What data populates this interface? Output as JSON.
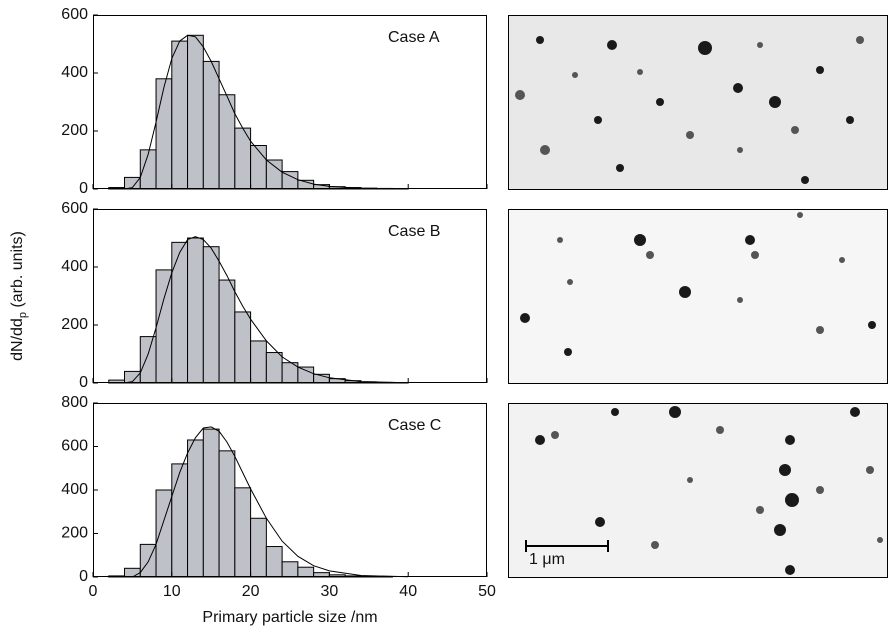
{
  "chart_data": [
    {
      "type": "histogram",
      "annotation": "Case A",
      "color": "#bfc1c8",
      "bins": [
        2,
        4,
        6,
        8,
        10,
        12,
        14,
        16,
        18,
        20,
        22,
        24,
        26,
        28,
        30,
        32,
        34,
        36,
        38,
        40
      ],
      "values": [
        5,
        40,
        135,
        380,
        510,
        530,
        440,
        325,
        210,
        150,
        100,
        60,
        30,
        15,
        8,
        5,
        3,
        2,
        1
      ],
      "fit": {
        "x": [
          4,
          5,
          6,
          7,
          8,
          9,
          10,
          11,
          12,
          13,
          14,
          15,
          16,
          17,
          18,
          19,
          20,
          22,
          24,
          26,
          28,
          30,
          34,
          40
        ],
        "values": [
          0,
          5,
          40,
          120,
          230,
          350,
          450,
          510,
          530,
          525,
          490,
          440,
          380,
          320,
          260,
          210,
          165,
          100,
          58,
          32,
          17,
          9,
          2,
          0
        ]
      },
      "xlim": [
        0,
        50
      ],
      "xticks": [
        0,
        10,
        20,
        30,
        40,
        50
      ],
      "ylim": [
        0,
        600
      ],
      "yticks": [
        0,
        200,
        400,
        600
      ]
    },
    {
      "type": "histogram",
      "annotation": "Case B",
      "color": "#bfc1c8",
      "ylabel": {
        "text": "dN/dd",
        "subscript": "p",
        "suffix": " (arb. units)"
      },
      "bins": [
        2,
        4,
        6,
        8,
        10,
        12,
        14,
        16,
        18,
        20,
        22,
        24,
        26,
        28,
        30,
        32,
        34,
        36,
        38,
        40
      ],
      "values": [
        10,
        40,
        160,
        390,
        485,
        500,
        470,
        355,
        245,
        145,
        105,
        70,
        55,
        30,
        15,
        8,
        4,
        2,
        1
      ],
      "fit": {
        "x": [
          4,
          5,
          6,
          7,
          8,
          9,
          10,
          11,
          12,
          13,
          14,
          15,
          16,
          17,
          18,
          19,
          20,
          22,
          24,
          26,
          28,
          30,
          34,
          40
        ],
        "values": [
          0,
          5,
          35,
          100,
          190,
          290,
          380,
          450,
          495,
          505,
          495,
          465,
          420,
          370,
          315,
          265,
          220,
          145,
          90,
          55,
          32,
          18,
          5,
          1
        ]
      },
      "xlim": [
        0,
        50
      ],
      "xticks": [
        0,
        10,
        20,
        30,
        40,
        50
      ],
      "ylim": [
        0,
        600
      ],
      "yticks": [
        0,
        200,
        400,
        600
      ]
    },
    {
      "type": "histogram",
      "annotation": "Case C",
      "color": "#bfc1c8",
      "xlabel": "Primary particle size /nm",
      "bins": [
        2,
        4,
        6,
        8,
        10,
        12,
        14,
        16,
        18,
        20,
        22,
        24,
        26,
        28,
        30,
        32,
        34,
        36,
        38,
        40
      ],
      "values": [
        5,
        40,
        150,
        400,
        520,
        630,
        680,
        580,
        410,
        270,
        140,
        70,
        45,
        20,
        10,
        5,
        3,
        1,
        0
      ],
      "fit": {
        "x": [
          5,
          6,
          7,
          8,
          9,
          10,
          11,
          12,
          13,
          14,
          15,
          16,
          17,
          18,
          19,
          20,
          22,
          24,
          26,
          28,
          30,
          34,
          40
        ],
        "values": [
          0,
          20,
          70,
          150,
          260,
          370,
          480,
          570,
          640,
          685,
          690,
          670,
          620,
          555,
          480,
          405,
          270,
          165,
          95,
          52,
          28,
          7,
          1
        ]
      },
      "xlim": [
        0,
        50
      ],
      "xticks": [
        0,
        10,
        20,
        30,
        40,
        50
      ],
      "ylim": [
        0,
        800
      ],
      "yticks": [
        0,
        200,
        400,
        600,
        800
      ]
    }
  ],
  "micrograph": {
    "scale_bar": "1 μm"
  }
}
